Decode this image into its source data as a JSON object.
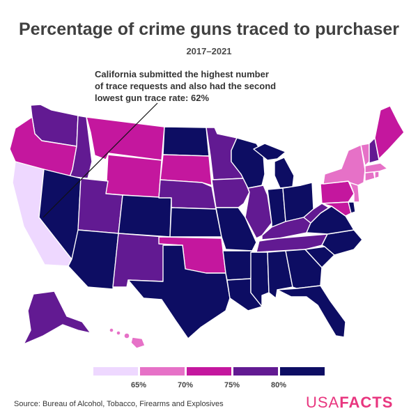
{
  "title": "Percentage of crime guns traced to purchaser",
  "subtitle": "2017–2021",
  "annotation": {
    "lines": [
      "California submitted the highest number",
      "of trace requests and also had the second",
      "lowest gun trace rate: 62%"
    ]
  },
  "colors": {
    "c1": "#eed8ff",
    "c2": "#e671c7",
    "c3": "#c4179e",
    "c4": "#621a92",
    "c5": "#0d0d63"
  },
  "legend": {
    "ticks": [
      "65%",
      "70%",
      "75%",
      "80%"
    ]
  },
  "source": "Source: Bureau of Alcohol, Tobacco, Firearms and Explosives",
  "logo": {
    "light": "USA",
    "bold": "FACTS"
  }
}
